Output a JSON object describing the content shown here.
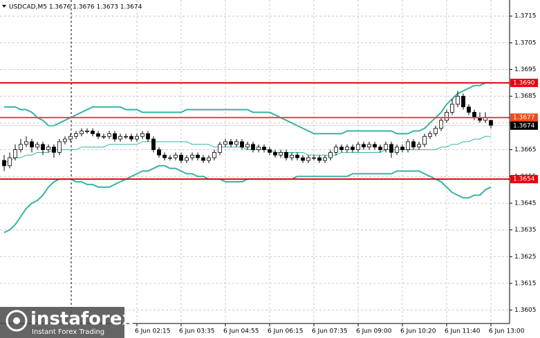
{
  "chart_data": {
    "type": "candlestick",
    "title": "USDCAD,M5  1.3676 1.3676 1.3673 1.3674",
    "ylim": [
      1.36,
      1.3721
    ],
    "yticks": [
      1.3715,
      1.3705,
      1.3695,
      1.3685,
      1.3675,
      1.3665,
      1.3655,
      1.3645,
      1.3635,
      1.3625,
      1.3615,
      1.3605
    ],
    "xticks": [
      {
        "value": 24,
        "label": "6 Jun 02:15"
      },
      {
        "value": 32,
        "label": "6 Jun 03:35"
      },
      {
        "value": 40,
        "label": "6 Jun 04:55"
      },
      {
        "value": 48,
        "label": "6 Jun 06:15"
      },
      {
        "value": 56,
        "label": "6 Jun 07:35"
      },
      {
        "value": 64,
        "label": "6 Jun 09:00"
      },
      {
        "value": 72,
        "label": "6 Jun 10:20"
      },
      {
        "value": 80,
        "label": "6 Jun 11:40"
      },
      {
        "value": 88,
        "label": "6 Jun 13:00"
      }
    ],
    "grid": true,
    "candles": [
      [
        1.3661,
        1.3663,
        1.3657,
        1.3659
      ],
      [
        1.3659,
        1.3664,
        1.3658,
        1.3662
      ],
      [
        1.3662,
        1.3667,
        1.3661,
        1.3665
      ],
      [
        1.3665,
        1.3669,
        1.3664,
        1.3667
      ],
      [
        1.3667,
        1.367,
        1.3666,
        1.3668
      ],
      [
        1.3668,
        1.3669,
        1.3664,
        1.3666
      ],
      [
        1.3666,
        1.3668,
        1.3665,
        1.3667
      ],
      [
        1.3667,
        1.3668,
        1.3663,
        1.3665
      ],
      [
        1.3665,
        1.3667,
        1.3664,
        1.3666
      ],
      [
        1.3666,
        1.3667,
        1.3662,
        1.3664
      ],
      [
        1.3664,
        1.3669,
        1.3663,
        1.3668
      ],
      [
        1.3668,
        1.367,
        1.3667,
        1.3669
      ],
      [
        1.3669,
        1.3671,
        1.3668,
        1.367
      ],
      [
        1.367,
        1.3672,
        1.3669,
        1.3671
      ],
      [
        1.3671,
        1.3673,
        1.367,
        1.3672
      ],
      [
        1.3672,
        1.3673,
        1.3671,
        1.3672
      ],
      [
        1.3672,
        1.3673,
        1.367,
        1.3671
      ],
      [
        1.3671,
        1.3672,
        1.3669,
        1.367
      ],
      [
        1.367,
        1.3671,
        1.3669,
        1.367
      ],
      [
        1.367,
        1.3672,
        1.3669,
        1.3671
      ],
      [
        1.3671,
        1.3672,
        1.3668,
        1.3669
      ],
      [
        1.3669,
        1.3671,
        1.3668,
        1.367
      ],
      [
        1.367,
        1.3671,
        1.3669,
        1.367
      ],
      [
        1.367,
        1.3671,
        1.3668,
        1.3669
      ],
      [
        1.3669,
        1.3671,
        1.3668,
        1.367
      ],
      [
        1.367,
        1.3672,
        1.3669,
        1.3671
      ],
      [
        1.3671,
        1.3672,
        1.3668,
        1.3669
      ],
      [
        1.3669,
        1.367,
        1.3664,
        1.3665
      ],
      [
        1.3665,
        1.3666,
        1.3662,
        1.3663
      ],
      [
        1.3663,
        1.3664,
        1.3661,
        1.3662
      ],
      [
        1.3662,
        1.3663,
        1.3661,
        1.3662
      ],
      [
        1.3662,
        1.3664,
        1.3661,
        1.3663
      ],
      [
        1.3663,
        1.3664,
        1.366,
        1.3661
      ],
      [
        1.3661,
        1.3663,
        1.366,
        1.3662
      ],
      [
        1.3662,
        1.3664,
        1.3661,
        1.3663
      ],
      [
        1.3663,
        1.3664,
        1.3661,
        1.3662
      ],
      [
        1.3662,
        1.3663,
        1.366,
        1.3661
      ],
      [
        1.3661,
        1.3663,
        1.366,
        1.3662
      ],
      [
        1.3662,
        1.3665,
        1.3661,
        1.3664
      ],
      [
        1.3664,
        1.3668,
        1.3663,
        1.3667
      ],
      [
        1.3667,
        1.3669,
        1.3666,
        1.3668
      ],
      [
        1.3668,
        1.3669,
        1.3666,
        1.3667
      ],
      [
        1.3667,
        1.3669,
        1.3666,
        1.3668
      ],
      [
        1.3668,
        1.3669,
        1.3665,
        1.3666
      ],
      [
        1.3666,
        1.3668,
        1.3665,
        1.3667
      ],
      [
        1.3667,
        1.3668,
        1.3664,
        1.3665
      ],
      [
        1.3665,
        1.3667,
        1.3664,
        1.3666
      ],
      [
        1.3666,
        1.3667,
        1.3664,
        1.3665
      ],
      [
        1.3665,
        1.3666,
        1.3663,
        1.3664
      ],
      [
        1.3664,
        1.3665,
        1.3662,
        1.3663
      ],
      [
        1.3663,
        1.3665,
        1.3662,
        1.3664
      ],
      [
        1.3664,
        1.3665,
        1.3661,
        1.3662
      ],
      [
        1.3662,
        1.3664,
        1.3661,
        1.3663
      ],
      [
        1.3663,
        1.3664,
        1.3661,
        1.3662
      ],
      [
        1.3662,
        1.3663,
        1.366,
        1.3661
      ],
      [
        1.3661,
        1.3663,
        1.366,
        1.3662
      ],
      [
        1.3662,
        1.3663,
        1.3661,
        1.3662
      ],
      [
        1.3662,
        1.3663,
        1.366,
        1.3661
      ],
      [
        1.3661,
        1.3663,
        1.366,
        1.3662
      ],
      [
        1.3662,
        1.3665,
        1.3661,
        1.3664
      ],
      [
        1.3664,
        1.3667,
        1.3663,
        1.3666
      ],
      [
        1.3666,
        1.3667,
        1.3664,
        1.3665
      ],
      [
        1.3665,
        1.3667,
        1.3664,
        1.3666
      ],
      [
        1.3666,
        1.3667,
        1.3664,
        1.3665
      ],
      [
        1.3665,
        1.3668,
        1.3664,
        1.3667
      ],
      [
        1.3667,
        1.3668,
        1.3665,
        1.3666
      ],
      [
        1.3666,
        1.3668,
        1.3665,
        1.3667
      ],
      [
        1.3667,
        1.3668,
        1.3665,
        1.3666
      ],
      [
        1.3666,
        1.3667,
        1.3664,
        1.3665
      ],
      [
        1.3665,
        1.3668,
        1.3664,
        1.3667
      ],
      [
        1.3667,
        1.3668,
        1.3662,
        1.3664
      ],
      [
        1.3664,
        1.3667,
        1.3663,
        1.3666
      ],
      [
        1.3666,
        1.3667,
        1.3664,
        1.3665
      ],
      [
        1.3665,
        1.3669,
        1.3664,
        1.3668
      ],
      [
        1.3668,
        1.3669,
        1.3665,
        1.3666
      ],
      [
        1.3666,
        1.3668,
        1.3665,
        1.3667
      ],
      [
        1.3667,
        1.3671,
        1.3666,
        1.367
      ],
      [
        1.367,
        1.3672,
        1.3669,
        1.3671
      ],
      [
        1.3671,
        1.3674,
        1.367,
        1.3673
      ],
      [
        1.3673,
        1.3677,
        1.3672,
        1.3676
      ],
      [
        1.3676,
        1.368,
        1.3675,
        1.3679
      ],
      [
        1.3679,
        1.3684,
        1.3678,
        1.3682
      ],
      [
        1.3682,
        1.3687,
        1.3681,
        1.3685
      ],
      [
        1.3685,
        1.3686,
        1.368,
        1.3681
      ],
      [
        1.3681,
        1.3682,
        1.3678,
        1.3679
      ],
      [
        1.3679,
        1.368,
        1.3676,
        1.3677
      ],
      [
        1.3677,
        1.3679,
        1.3675,
        1.3676
      ],
      [
        1.3676,
        1.3679,
        1.3675,
        1.3677
      ],
      [
        1.3676,
        1.3676,
        1.3673,
        1.3674
      ]
    ],
    "series": [
      {
        "color": "#35b2a8",
        "width": 2,
        "values": [
          1.3681,
          1.3681,
          1.3681,
          1.368,
          1.368,
          1.3679,
          1.3677,
          1.3676,
          1.3674,
          1.3674,
          1.3675,
          1.3676,
          1.3677,
          1.3678,
          1.3679,
          1.368,
          1.3681,
          1.3681,
          1.3681,
          1.3681,
          1.3681,
          1.3681,
          1.368,
          1.368,
          1.368,
          1.3679,
          1.3679,
          1.3679,
          1.3679,
          1.3679,
          1.3679,
          1.3679,
          1.3679,
          1.368,
          1.368,
          1.368,
          1.368,
          1.368,
          1.368,
          1.368,
          1.368,
          1.368,
          1.368,
          1.368,
          1.368,
          1.3679,
          1.3679,
          1.3679,
          1.3679,
          1.3678,
          1.3677,
          1.3676,
          1.3675,
          1.3674,
          1.3673,
          1.3672,
          1.3671,
          1.3671,
          1.3671,
          1.3671,
          1.3671,
          1.3671,
          1.3672,
          1.3672,
          1.3672,
          1.3672,
          1.3672,
          1.3672,
          1.3672,
          1.3672,
          1.3672,
          1.3671,
          1.3671,
          1.3671,
          1.3672,
          1.3672,
          1.3673,
          1.3675,
          1.3677,
          1.3679,
          1.3682,
          1.3684,
          1.3686,
          1.3687,
          1.3688,
          1.3689,
          1.3689,
          1.369,
          1.369
        ]
      },
      {
        "color": "#35b2a8",
        "width": 1,
        "values": [
          1.366,
          1.3661,
          1.3662,
          1.3662,
          1.3663,
          1.3663,
          1.3664,
          1.3664,
          1.3664,
          1.3665,
          1.3665,
          1.3665,
          1.3665,
          1.3665,
          1.3666,
          1.3666,
          1.3666,
          1.3666,
          1.3666,
          1.3667,
          1.3667,
          1.3667,
          1.3667,
          1.3667,
          1.3667,
          1.3668,
          1.3668,
          1.3668,
          1.3668,
          1.3668,
          1.3668,
          1.3668,
          1.3668,
          1.3668,
          1.3667,
          1.3667,
          1.3667,
          1.3667,
          1.3666,
          1.3666,
          1.3666,
          1.3666,
          1.3666,
          1.3666,
          1.3665,
          1.3665,
          1.3665,
          1.3665,
          1.3665,
          1.3664,
          1.3664,
          1.3664,
          1.3664,
          1.3664,
          1.3664,
          1.3663,
          1.3663,
          1.3663,
          1.3663,
          1.3663,
          1.3663,
          1.3664,
          1.3664,
          1.3664,
          1.3664,
          1.3664,
          1.3664,
          1.3664,
          1.3664,
          1.3665,
          1.3665,
          1.3665,
          1.3665,
          1.3665,
          1.3665,
          1.3665,
          1.3665,
          1.3665,
          1.3665,
          1.3666,
          1.3666,
          1.3667,
          1.3667,
          1.3668,
          1.3668,
          1.3669,
          1.3669,
          1.367,
          1.367
        ]
      },
      {
        "color": "#35b2a8",
        "width": 2,
        "values": [
          1.3634,
          1.3635,
          1.3637,
          1.364,
          1.3643,
          1.3645,
          1.3646,
          1.3648,
          1.3651,
          1.3653,
          1.3654,
          1.3654,
          1.3654,
          1.3653,
          1.3653,
          1.3652,
          1.3652,
          1.3651,
          1.3651,
          1.3651,
          1.3652,
          1.3653,
          1.3654,
          1.3655,
          1.3656,
          1.3657,
          1.3657,
          1.3658,
          1.3659,
          1.3659,
          1.3658,
          1.3658,
          1.3657,
          1.3656,
          1.3656,
          1.3655,
          1.3655,
          1.3654,
          1.3654,
          1.3654,
          1.3653,
          1.3653,
          1.3653,
          1.3653,
          1.3654,
          1.3654,
          1.3654,
          1.3654,
          1.3654,
          1.3654,
          1.3654,
          1.3654,
          1.3654,
          1.3655,
          1.3655,
          1.3655,
          1.3655,
          1.3655,
          1.3655,
          1.3655,
          1.3655,
          1.3655,
          1.3655,
          1.3656,
          1.3656,
          1.3656,
          1.3656,
          1.3656,
          1.3656,
          1.3656,
          1.3656,
          1.3657,
          1.3657,
          1.3657,
          1.3657,
          1.3657,
          1.3656,
          1.3655,
          1.3654,
          1.3653,
          1.3651,
          1.3649,
          1.3648,
          1.3647,
          1.3647,
          1.3648,
          1.3648,
          1.365,
          1.3651
        ]
      }
    ],
    "levels": [
      {
        "value": 1.369,
        "label": "1.3690",
        "color": "#e8000b"
      },
      {
        "value": 1.3677,
        "color": "#f04a1a"
      },
      {
        "value": 1.3654,
        "color": "#e8000b"
      }
    ],
    "last_price": 1.3674
  },
  "logo": {
    "name": "instaforex",
    "tagline": "Instant Forex Trading"
  }
}
